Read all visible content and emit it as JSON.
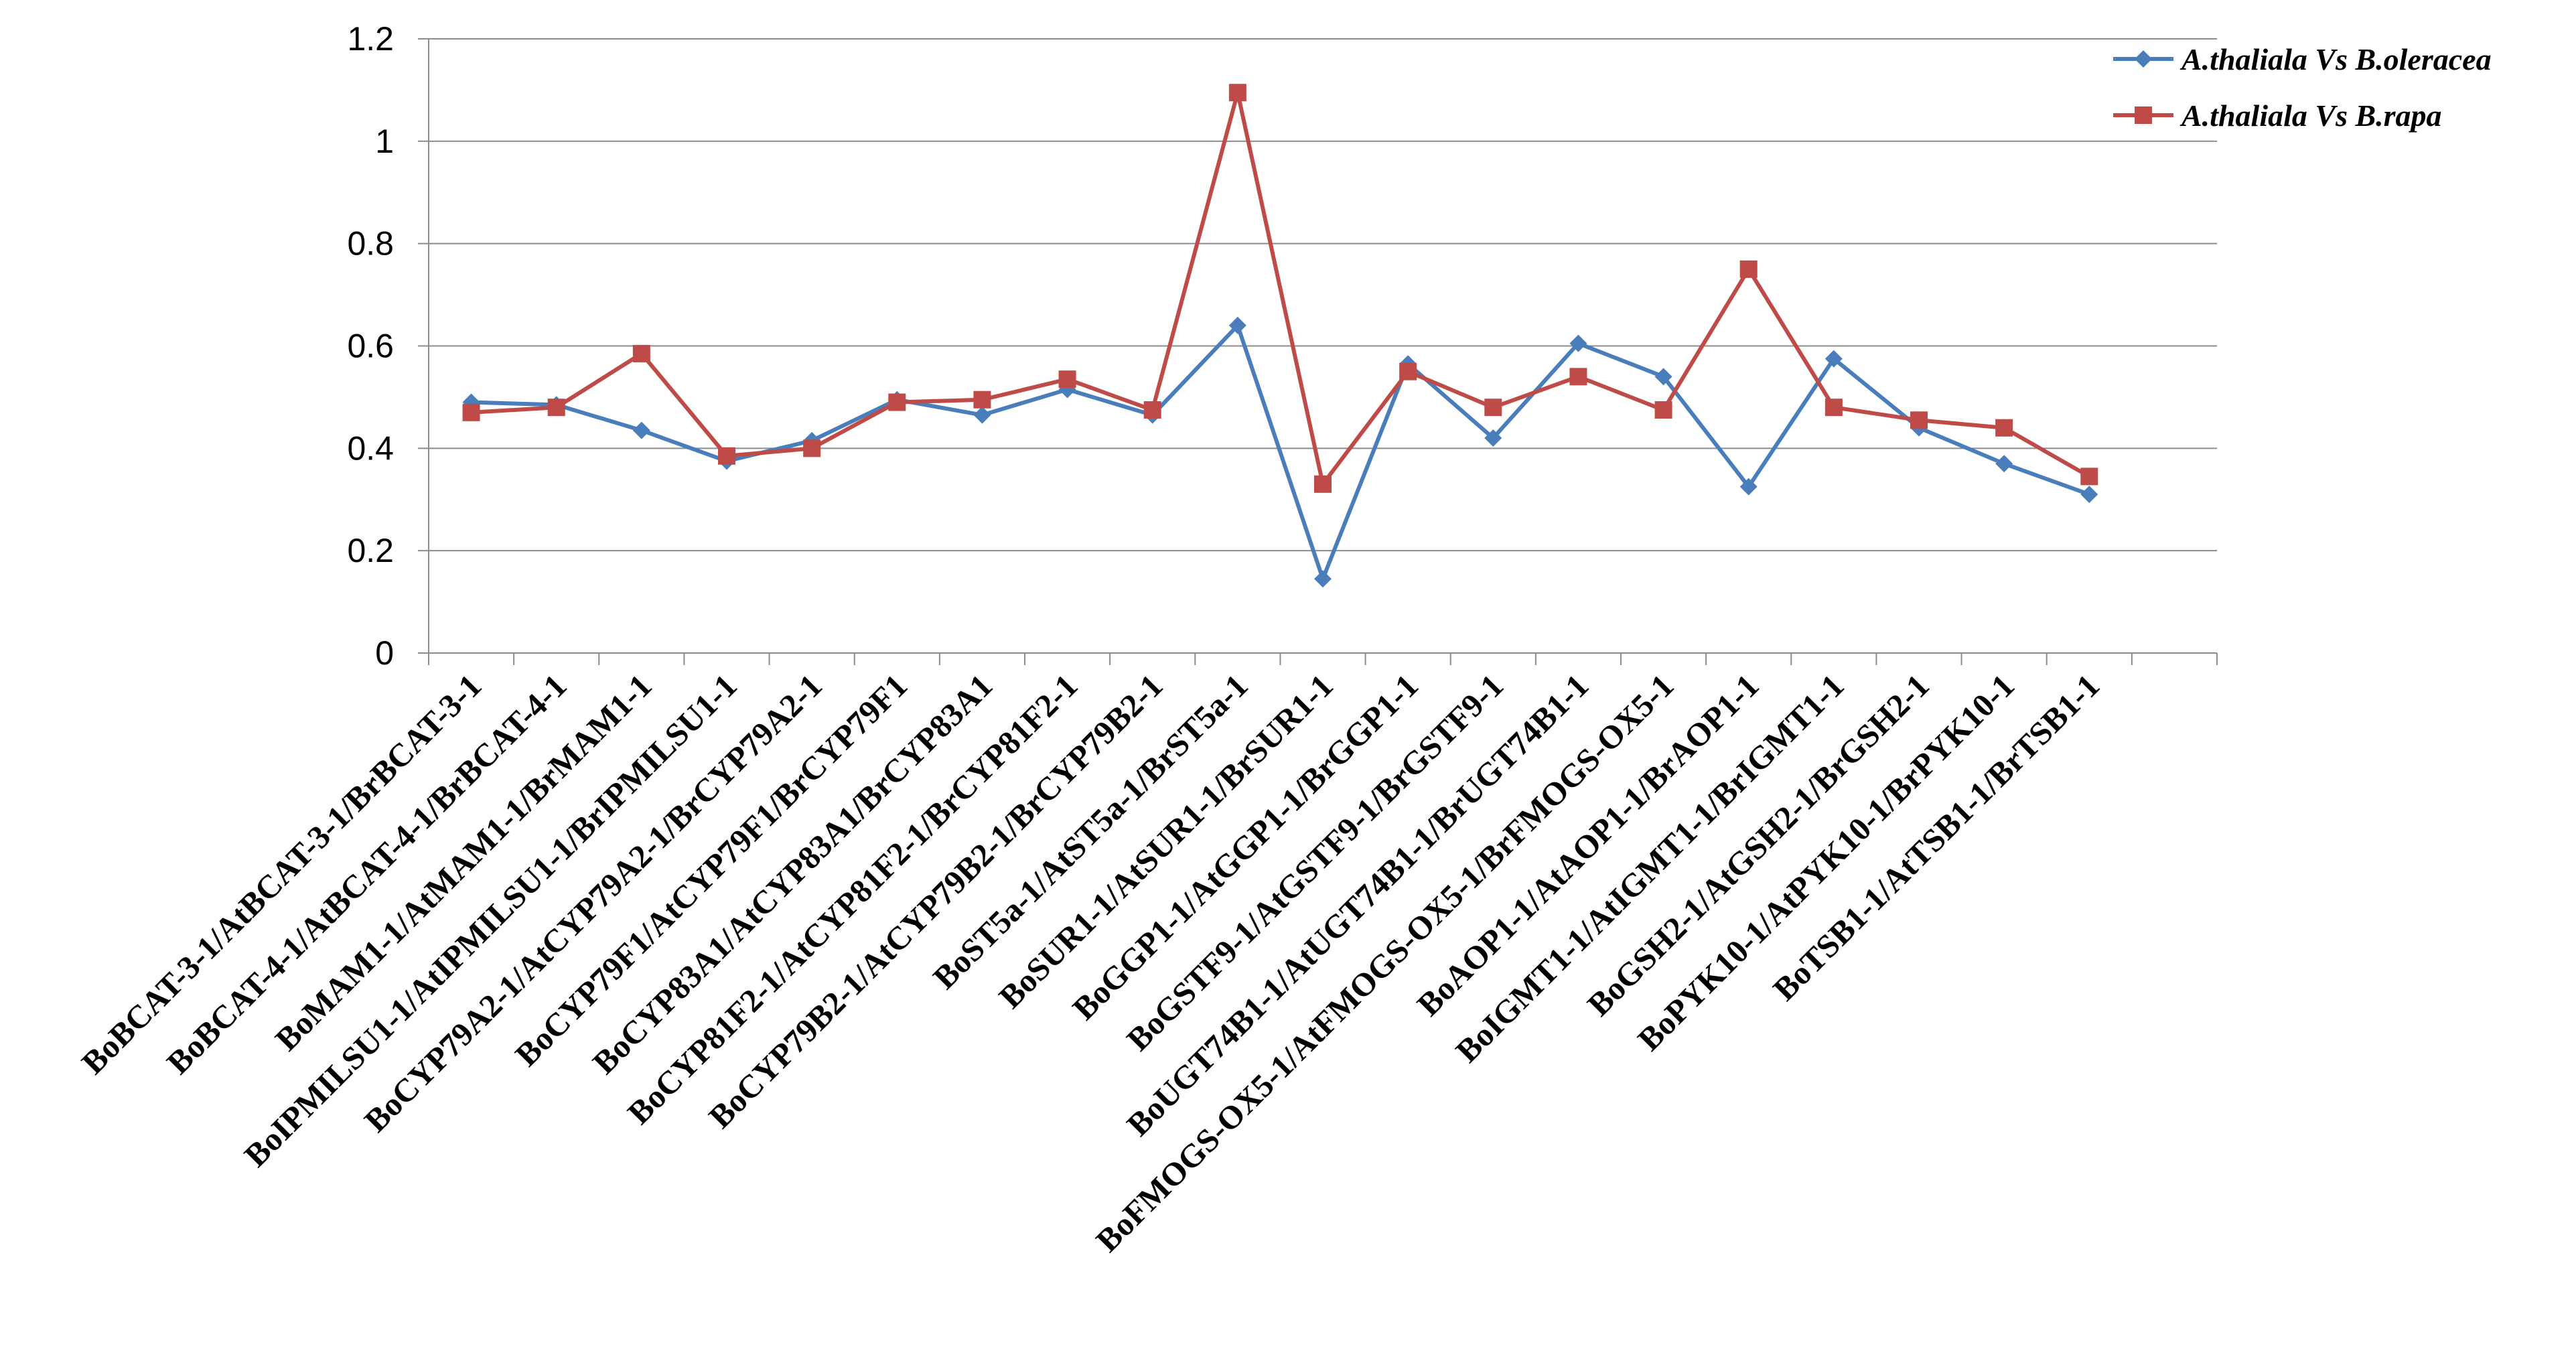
{
  "chart_data": {
    "type": "line",
    "title": "",
    "xlabel": "",
    "ylabel": "",
    "ylim": [
      0,
      1.2
    ],
    "y_ticks": [
      "0",
      "0.2",
      "0.4",
      "0.6",
      "0.8",
      "1",
      "1.2"
    ],
    "grid": "horizontal",
    "legend_position": "top-right",
    "categories": [
      "BoBCAT-3-1/AtBCAT-3-1/BrBCAT-3-1",
      "BoBCAT-4-1/AtBCAT-4-1/BrBCAT-4-1",
      "BoMAM1-1/AtMAM1-1/BrMAM1-1",
      "BoIPMILSU1-1/AtIPMILSU1-1/BrIPMILSU1-1",
      "BoCYP79A2-1/AtCYP79A2-1/BrCYP79A2-1",
      "BoCYP79F1/AtCYP79F1/BrCYP79F1",
      "BoCYP83A1/AtCYP83A1/BrCYP83A1",
      "BoCYP81F2-1/AtCYP81F2-1/BrCYP81F2-1",
      "BoCYP79B2-1/AtCYP79B2-1/BrCYP79B2-1",
      "BoST5a-1/AtST5a-1/BrST5a-1",
      "BoSUR1-1/AtSUR1-1/BrSUR1-1",
      "BoGGP1-1/AtGGP1-1/BrGGP1-1",
      "BoGSTF9-1/AtGSTF9-1/BrGSTF9-1",
      "BoUGT74B1-1/AtUGT74B1-1/BrUGT74B1-1",
      "BoFMOGS-OX5-1/AtFMOGS-OX5-1/BrFMOGS-OX5-1",
      "BoAOP1-1/AtAOP1-1/BrAOP1-1",
      "BoIGMT1-1/AtIGMT1-1/BrIGMT1-1",
      "BoGSH2-1/AtGSH2-1/BrGSH2-1",
      "BoPYK10-1/AtPYK10-1/BrPYK10-1",
      "BoTSB1-1/AtTSB1-1/BrTSB1-1"
    ],
    "series": [
      {
        "name": "A.thaliala Vs B.oleracea",
        "color": "#4a7ebb",
        "marker": "diamond",
        "values": [
          0.49,
          0.485,
          0.435,
          0.375,
          0.415,
          0.495,
          0.465,
          0.515,
          0.465,
          0.64,
          0.145,
          0.565,
          0.42,
          0.605,
          0.54,
          0.325,
          0.575,
          0.44,
          0.37,
          0.31
        ]
      },
      {
        "name": "A.thaliala Vs B.rapa",
        "color": "#be4b48",
        "marker": "square",
        "values": [
          0.47,
          0.48,
          0.585,
          0.385,
          0.4,
          0.49,
          0.495,
          0.535,
          0.475,
          1.095,
          0.33,
          0.55,
          0.48,
          0.54,
          0.475,
          0.75,
          0.48,
          0.455,
          0.44,
          0.345
        ]
      }
    ]
  }
}
